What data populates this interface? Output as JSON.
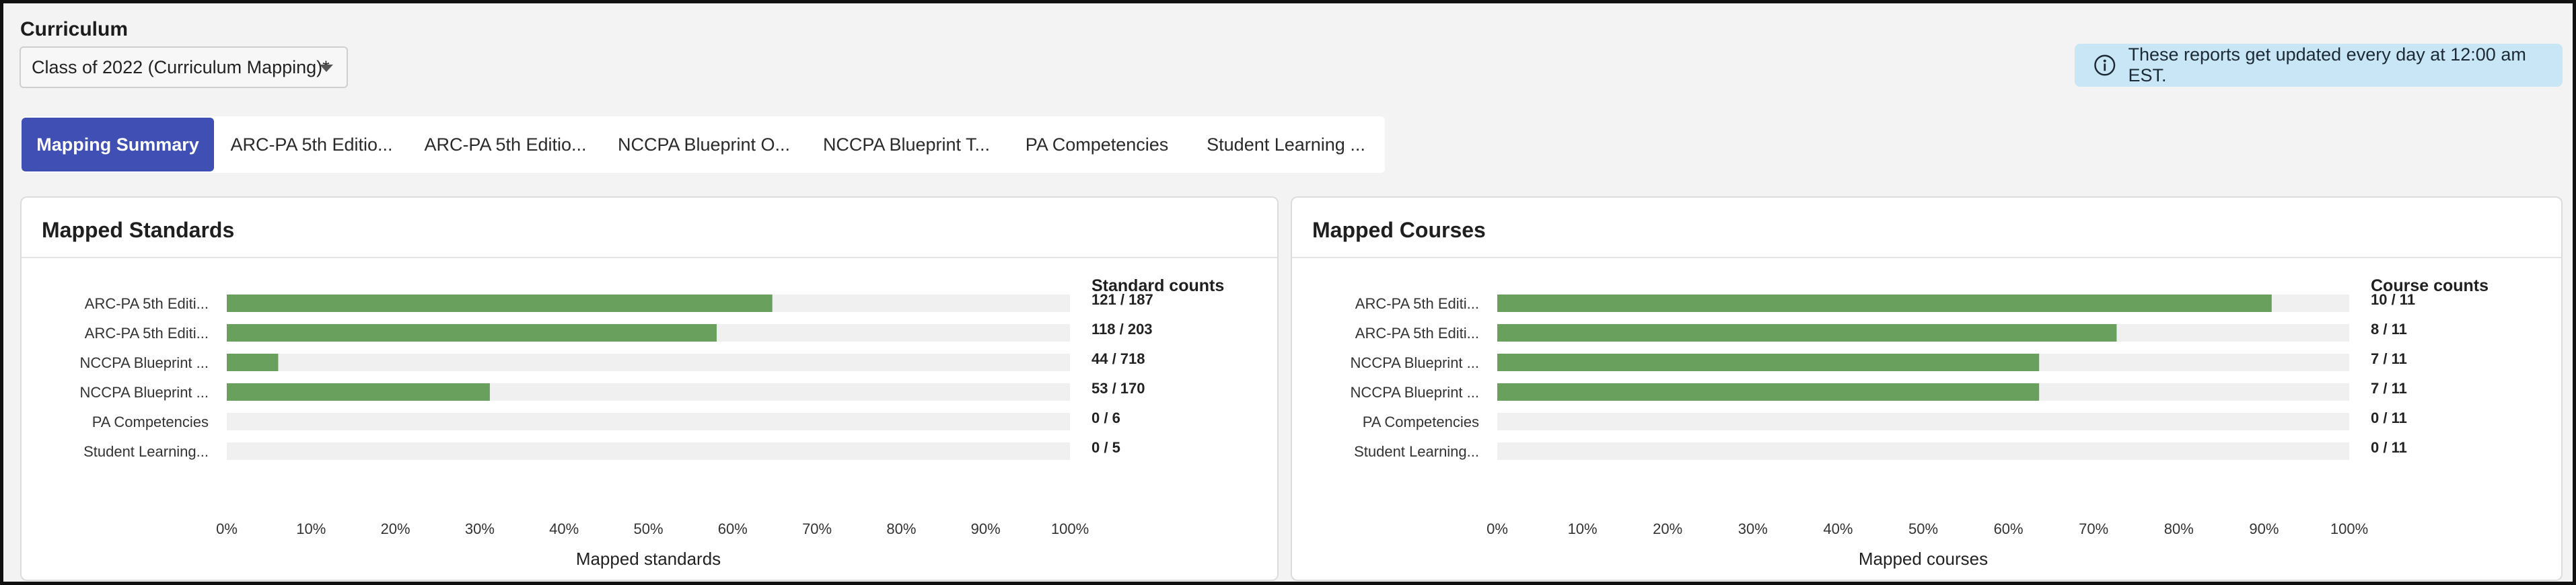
{
  "curriculum": {
    "label": "Curriculum",
    "selected": "Class of 2022 (Curriculum Mapping)*"
  },
  "info_banner": {
    "text": "These reports get updated every day at 12:00 am EST.",
    "icon": "info-icon"
  },
  "tabs": [
    {
      "label": "Mapping Summary",
      "active": true
    },
    {
      "label": "ARC-PA 5th Editio...",
      "active": false
    },
    {
      "label": "ARC-PA 5th Editio...",
      "active": false
    },
    {
      "label": "NCCPA Blueprint O...",
      "active": false
    },
    {
      "label": "NCCPA Blueprint T...",
      "active": false
    },
    {
      "label": "PA Competencies",
      "active": false
    },
    {
      "label": "Student Learning ...",
      "active": false
    }
  ],
  "colors": {
    "bar": "#6aa05d",
    "track": "#f0f0f0",
    "accent": "#3f4fb3",
    "banner": "#c9e6f6"
  },
  "panels": {
    "standards": {
      "title": "Mapped Standards"
    },
    "courses": {
      "title": "Mapped Courses"
    }
  },
  "chart_data": [
    {
      "type": "bar",
      "orientation": "horizontal",
      "title": "Mapped Standards",
      "xlabel": "Mapped standards",
      "counts_header": "Standard counts",
      "categories": [
        "ARC-PA 5th Editi...",
        "ARC-PA 5th Editi...",
        "NCCPA Blueprint ...",
        "NCCPA Blueprint ...",
        "PA Competencies",
        "Student Learning..."
      ],
      "values": [
        64.7,
        58.1,
        6.1,
        31.2,
        0,
        0
      ],
      "count_labels": [
        "121 / 187",
        "118 / 203",
        "44 / 718",
        "53 / 170",
        "0 / 6",
        "0 / 5"
      ],
      "xlim": [
        0,
        100
      ],
      "xticks": [
        "0%",
        "10%",
        "20%",
        "30%",
        "40%",
        "50%",
        "60%",
        "70%",
        "80%",
        "90%",
        "100%"
      ],
      "grid": false
    },
    {
      "type": "bar",
      "orientation": "horizontal",
      "title": "Mapped Courses",
      "xlabel": "Mapped courses",
      "counts_header": "Course counts",
      "categories": [
        "ARC-PA 5th Editi...",
        "ARC-PA 5th Editi...",
        "NCCPA Blueprint ...",
        "NCCPA Blueprint ...",
        "PA Competencies",
        "Student Learning..."
      ],
      "values": [
        90.9,
        72.7,
        63.6,
        63.6,
        0,
        0
      ],
      "count_labels": [
        "10 / 11",
        "8 / 11",
        "7 / 11",
        "7 / 11",
        "0 / 11",
        "0 / 11"
      ],
      "xlim": [
        0,
        100
      ],
      "xticks": [
        "0%",
        "10%",
        "20%",
        "30%",
        "40%",
        "50%",
        "60%",
        "70%",
        "80%",
        "90%",
        "100%"
      ],
      "grid": false
    }
  ]
}
